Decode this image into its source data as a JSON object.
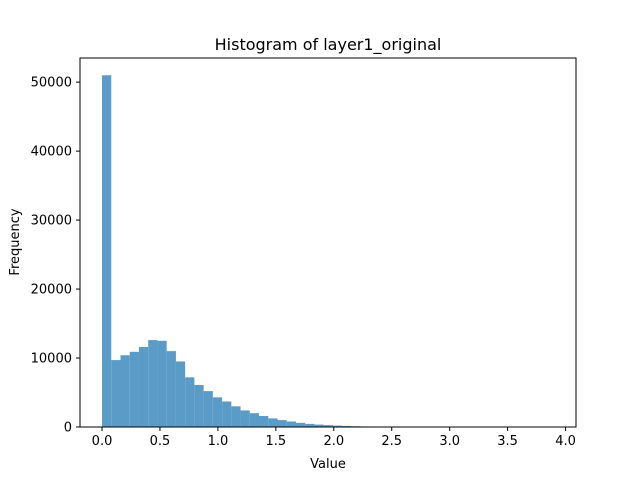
{
  "chart_data": {
    "type": "bar",
    "title": "Histogram of layer1_original",
    "xlabel": "Value",
    "ylabel": "Frequency",
    "xlim": [
      -0.19,
      4.09
    ],
    "ylim": [
      0,
      53500
    ],
    "grid": false,
    "bar_color": "#5a9bc8",
    "bins": {
      "start": 0.0,
      "width": 0.0797,
      "counts": [
        51000,
        9700,
        10400,
        10900,
        11600,
        12600,
        12500,
        11000,
        9500,
        7200,
        6100,
        5200,
        4300,
        3700,
        3000,
        2400,
        2000,
        1600,
        1250,
        1000,
        800,
        600,
        450,
        350,
        270,
        200,
        150,
        110,
        80,
        60,
        40,
        30,
        25,
        18,
        14,
        10,
        8,
        6,
        5,
        4,
        3,
        3,
        2,
        2,
        2,
        1,
        1,
        1,
        1
      ]
    },
    "x_ticks": [
      "0.0",
      "0.5",
      "1.0",
      "1.5",
      "2.0",
      "2.5",
      "3.0",
      "3.5",
      "4.0"
    ],
    "x_tick_values": [
      0.0,
      0.5,
      1.0,
      1.5,
      2.0,
      2.5,
      3.0,
      3.5,
      4.0
    ],
    "y_ticks": [
      "0",
      "10000",
      "20000",
      "30000",
      "40000",
      "50000"
    ],
    "y_tick_values": [
      0,
      10000,
      20000,
      30000,
      40000,
      50000
    ]
  }
}
